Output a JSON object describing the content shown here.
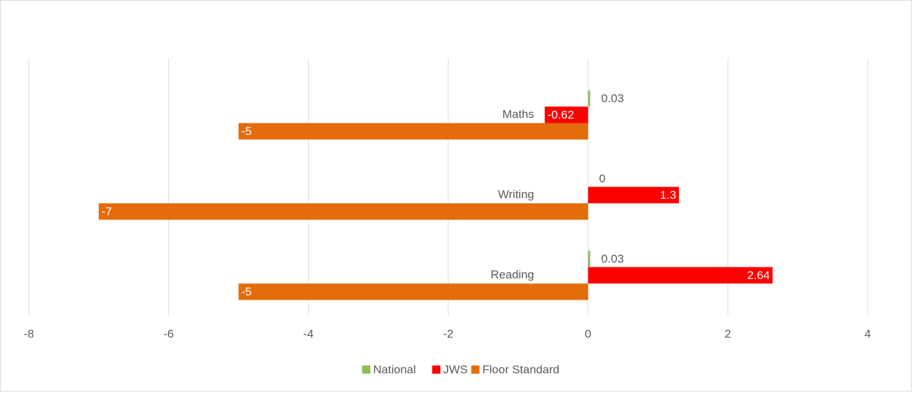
{
  "chart_data": {
    "type": "bar",
    "orientation": "horizontal",
    "categories": [
      "Maths",
      "Writing",
      "Reading"
    ],
    "series": [
      {
        "name": "National",
        "color": "#8fbc5a",
        "values": [
          0.03,
          0,
          0.03
        ]
      },
      {
        "name": "JWS",
        "color": "#ff0000",
        "values": [
          -0.62,
          1.3,
          2.64
        ]
      },
      {
        "name": "Floor Standard",
        "color": "#e46c0a",
        "values": [
          -5,
          -7,
          -5
        ]
      }
    ],
    "xlim": [
      -8,
      4
    ],
    "xticks": [
      -8,
      -6,
      -4,
      -2,
      0,
      2,
      4
    ],
    "grid": true,
    "legend": "bottom"
  }
}
